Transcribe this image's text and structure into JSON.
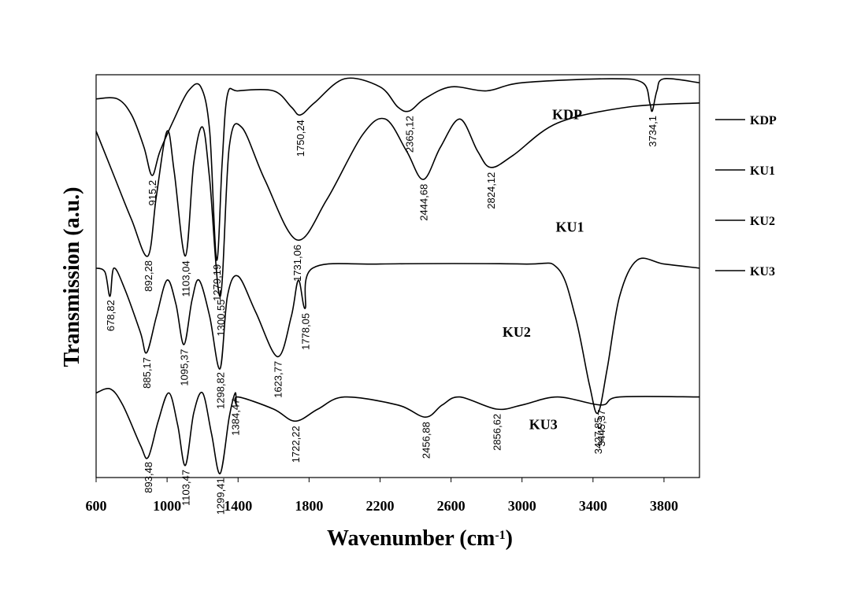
{
  "chart_data": {
    "type": "line",
    "xlabel_main": "Wavenumber (cm",
    "xlabel_sup": "-1",
    "xlabel_tail": ")",
    "ylabel": "Transmission (a.u.)",
    "xlim": [
      600,
      4000
    ],
    "x_ticks": [
      600,
      1000,
      1400,
      1800,
      2200,
      2600,
      3000,
      3400,
      3800
    ],
    "grid": false,
    "legend_position": "right",
    "colors": {
      "line": "#000000",
      "background": "#ffffff"
    },
    "series": [
      {
        "name": "KDP",
        "baseline_level": 0.06,
        "curve": [
          [
            600,
            0.06
          ],
          [
            720,
            0.06
          ],
          [
            800,
            0.1
          ],
          [
            870,
            0.18
          ],
          [
            915,
            0.25
          ],
          [
            960,
            0.19
          ],
          [
            1040,
            0.11
          ],
          [
            1120,
            0.04
          ],
          [
            1190,
            0.03
          ],
          [
            1240,
            0.14
          ],
          [
            1279,
            0.46
          ],
          [
            1310,
            0.22
          ],
          [
            1340,
            0.05
          ],
          [
            1400,
            0.04
          ],
          [
            1600,
            0.04
          ],
          [
            1700,
            0.08
          ],
          [
            1750,
            0.1
          ],
          [
            1830,
            0.07
          ],
          [
            2000,
            0.01
          ],
          [
            2200,
            0.03
          ],
          [
            2300,
            0.08
          ],
          [
            2365,
            0.09
          ],
          [
            2450,
            0.06
          ],
          [
            2600,
            0.03
          ],
          [
            2800,
            0.04
          ],
          [
            3000,
            0.02
          ],
          [
            3500,
            0.01
          ],
          [
            3680,
            0.02
          ],
          [
            3720,
            0.07
          ],
          [
            3734,
            0.09
          ],
          [
            3760,
            0.04
          ],
          [
            3800,
            0.01
          ],
          [
            4000,
            0.02
          ]
        ],
        "peaks": [
          915.2,
          1279.19,
          1750.24,
          2365.12,
          3734.1
        ],
        "peak_labels": [
          "915,2",
          "1279,19",
          "1750,24",
          "2365,12",
          "3734,1"
        ]
      },
      {
        "name": "KU1",
        "baseline_level": 0.15,
        "curve": [
          [
            600,
            0.14
          ],
          [
            700,
            0.25
          ],
          [
            800,
            0.36
          ],
          [
            892,
            0.45
          ],
          [
            940,
            0.3
          ],
          [
            1000,
            0.14
          ],
          [
            1040,
            0.24
          ],
          [
            1103,
            0.45
          ],
          [
            1150,
            0.22
          ],
          [
            1200,
            0.13
          ],
          [
            1240,
            0.26
          ],
          [
            1300,
            0.55
          ],
          [
            1350,
            0.18
          ],
          [
            1420,
            0.13
          ],
          [
            1550,
            0.26
          ],
          [
            1731,
            0.41
          ],
          [
            1900,
            0.31
          ],
          [
            2100,
            0.15
          ],
          [
            2230,
            0.11
          ],
          [
            2350,
            0.19
          ],
          [
            2444,
            0.26
          ],
          [
            2540,
            0.18
          ],
          [
            2650,
            0.11
          ],
          [
            2750,
            0.19
          ],
          [
            2824,
            0.23
          ],
          [
            2950,
            0.2
          ],
          [
            3200,
            0.12
          ],
          [
            3600,
            0.08
          ],
          [
            4000,
            0.07
          ]
        ],
        "peaks": [
          892.28,
          1103.04,
          1300.55,
          1731.06,
          2444.68,
          2824.12
        ],
        "peak_labels": [
          "892,28",
          "1103,04",
          "1300,55",
          "1731,06",
          "2444,68",
          "2824,12"
        ]
      },
      {
        "name": "KU2",
        "baseline_level": 0.48,
        "curve": [
          [
            600,
            0.48
          ],
          [
            650,
            0.49
          ],
          [
            678,
            0.55
          ],
          [
            700,
            0.48
          ],
          [
            760,
            0.53
          ],
          [
            850,
            0.64
          ],
          [
            885,
            0.69
          ],
          [
            940,
            0.6
          ],
          [
            1000,
            0.51
          ],
          [
            1050,
            0.57
          ],
          [
            1095,
            0.67
          ],
          [
            1140,
            0.56
          ],
          [
            1180,
            0.51
          ],
          [
            1240,
            0.6
          ],
          [
            1298,
            0.73
          ],
          [
            1340,
            0.55
          ],
          [
            1400,
            0.5
          ],
          [
            1500,
            0.59
          ],
          [
            1623,
            0.7
          ],
          [
            1700,
            0.6
          ],
          [
            1740,
            0.51
          ],
          [
            1778,
            0.58
          ],
          [
            1820,
            0.48
          ],
          [
            2200,
            0.47
          ],
          [
            3000,
            0.47
          ],
          [
            3200,
            0.48
          ],
          [
            3300,
            0.6
          ],
          [
            3380,
            0.77
          ],
          [
            3427,
            0.84
          ],
          [
            3480,
            0.73
          ],
          [
            3550,
            0.55
          ],
          [
            3650,
            0.46
          ],
          [
            3800,
            0.47
          ],
          [
            4000,
            0.48
          ]
        ],
        "peaks": [
          678.82,
          885.17,
          1095.37,
          1298.82,
          1623.77,
          1778.05,
          3427.85
        ],
        "peak_labels": [
          "678,82",
          "885,17",
          "1095,37",
          "1298,82",
          "1623,77",
          "1778,05",
          "3427,85"
        ]
      },
      {
        "name": "KU3",
        "baseline_level": 0.79,
        "curve": [
          [
            600,
            0.79
          ],
          [
            680,
            0.78
          ],
          [
            750,
            0.82
          ],
          [
            850,
            0.92
          ],
          [
            893,
            0.95
          ],
          [
            950,
            0.86
          ],
          [
            1010,
            0.79
          ],
          [
            1060,
            0.87
          ],
          [
            1103,
            0.97
          ],
          [
            1150,
            0.84
          ],
          [
            1200,
            0.79
          ],
          [
            1250,
            0.89
          ],
          [
            1299,
            0.99
          ],
          [
            1350,
            0.85
          ],
          [
            1384,
            0.79
          ],
          [
            1390,
            0.82
          ],
          [
            1400,
            0.8
          ],
          [
            1600,
            0.83
          ],
          [
            1722,
            0.86
          ],
          [
            1850,
            0.83
          ],
          [
            2000,
            0.8
          ],
          [
            2300,
            0.82
          ],
          [
            2456,
            0.85
          ],
          [
            2550,
            0.82
          ],
          [
            2650,
            0.8
          ],
          [
            2856,
            0.83
          ],
          [
            3000,
            0.82
          ],
          [
            3200,
            0.8
          ],
          [
            3445,
            0.82
          ],
          [
            3550,
            0.8
          ],
          [
            4000,
            0.8
          ]
        ],
        "peaks": [
          893.48,
          1103.47,
          1299.41,
          1384.47,
          1722.22,
          2456.88,
          2856.62,
          3445.37
        ],
        "peak_labels": [
          "893,48",
          "1103,47",
          "1299,41",
          "1384,47",
          "1722,22",
          "2456,88",
          "2856,62",
          "3445,37"
        ]
      }
    ],
    "legend": [
      "KDP",
      "KU1",
      "KU2",
      "KU3"
    ]
  }
}
